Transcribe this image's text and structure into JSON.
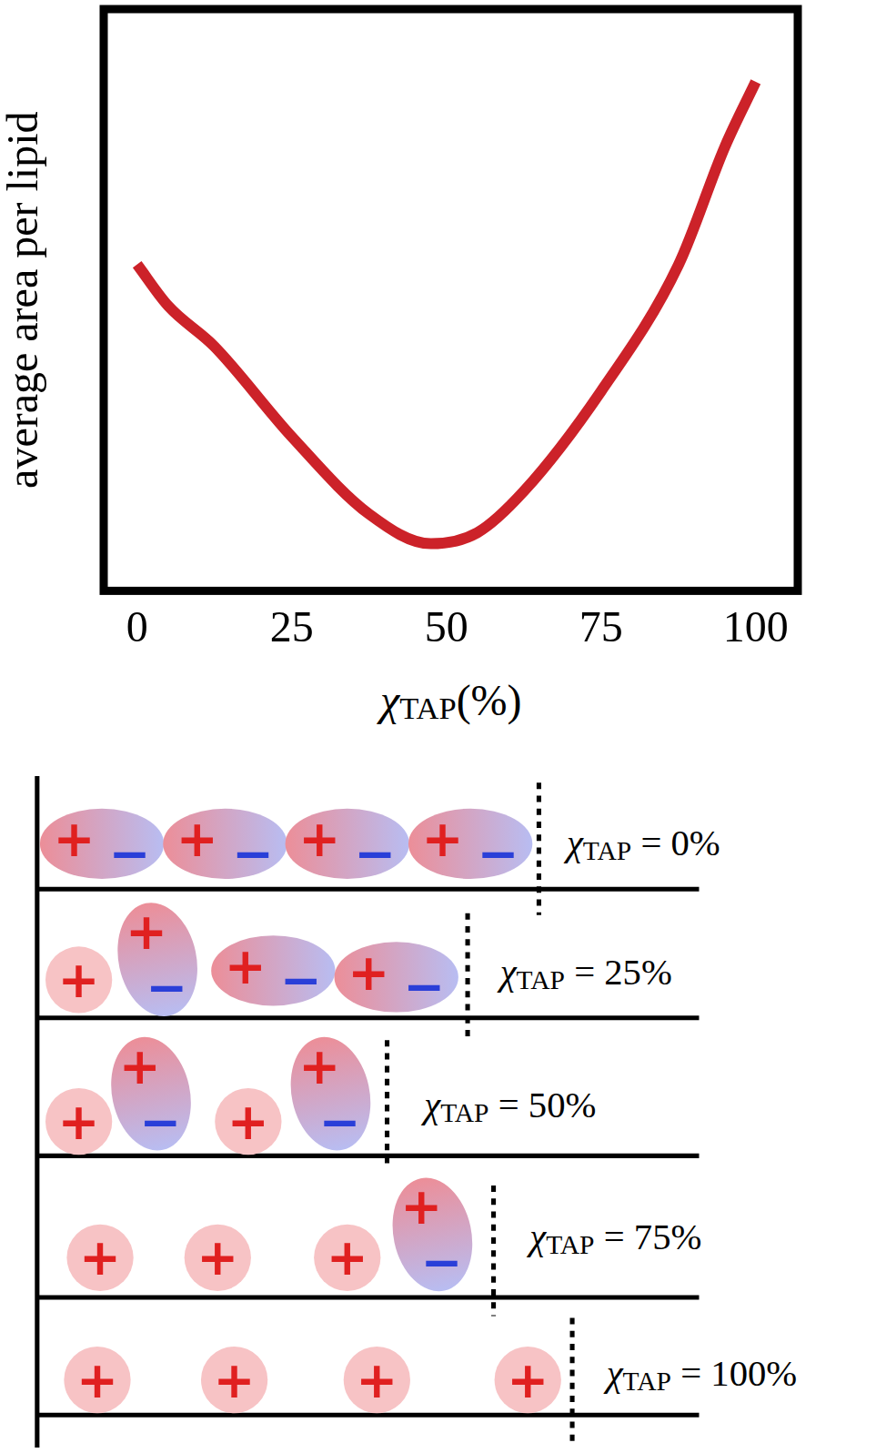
{
  "chart_data": {
    "type": "line",
    "y_label": "average area per lipid",
    "x_label": {
      "symbol": "χ",
      "subscript": "TAP",
      "text": "(%)"
    },
    "x": [
      0,
      5,
      12.5,
      25,
      37.5,
      47.5,
      55,
      62.5,
      75,
      87.5,
      95,
      100
    ],
    "values": [
      5.61,
      4.9,
      4.2,
      2.65,
      1.32,
      0.81,
      1.0,
      1.71,
      3.43,
      5.6,
      7.63,
      8.75
    ],
    "color": "#cc2229",
    "xlim": [
      -5.4,
      106.8
    ],
    "xticks": [
      0,
      25,
      50,
      75,
      100
    ],
    "ylim": [
      0,
      10
    ],
    "tick_labels": "x",
    "grid": false
  },
  "diagram": {
    "rows": [
      {
        "label": {
          "symbol": "χ",
          "subscript": "TAP",
          "text": " = 0%"
        },
        "items": [
          [
            "+",
            "−"
          ],
          [
            "+",
            "−"
          ],
          [
            "+",
            "−"
          ],
          [
            "+",
            "−"
          ]
        ]
      },
      {
        "label": {
          "symbol": "χ",
          "subscript": "TAP",
          "text": " = 25%"
        },
        "items": [
          [
            "+"
          ],
          [
            "+",
            "−"
          ],
          [
            "+",
            "−"
          ],
          [
            "+",
            "−"
          ]
        ]
      },
      {
        "label": {
          "symbol": "χ",
          "subscript": "TAP",
          "text": " = 50%"
        },
        "items": [
          [
            "+"
          ],
          [
            "+",
            "−"
          ],
          [
            "+"
          ],
          [
            "+",
            "−"
          ]
        ]
      },
      {
        "label": {
          "symbol": "χ",
          "subscript": "TAP",
          "text": " = 75%"
        },
        "items": [
          [
            "+"
          ],
          [
            "+"
          ],
          [
            "+"
          ],
          [
            "+",
            "−"
          ]
        ]
      },
      {
        "label": {
          "symbol": "χ",
          "subscript": "TAP",
          "text": " = 100%"
        },
        "items": [
          [
            "+"
          ],
          [
            "+"
          ],
          [
            "+"
          ],
          [
            "+"
          ]
        ]
      }
    ]
  }
}
